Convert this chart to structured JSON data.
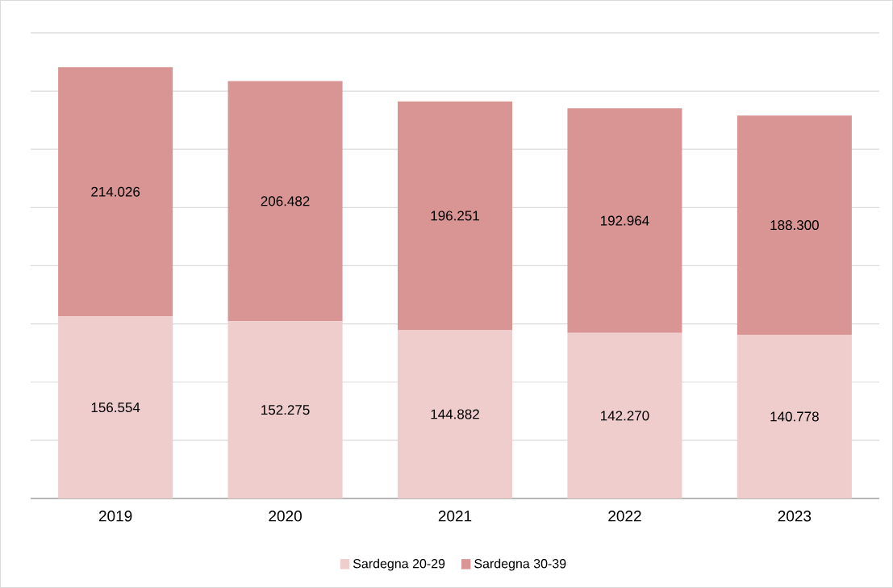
{
  "chart_data": {
    "type": "bar",
    "stacked": true,
    "categories": [
      "2019",
      "2020",
      "2021",
      "2022",
      "2023"
    ],
    "series": [
      {
        "name": "Sardegna 20-29",
        "color": "#eecdcc",
        "values": [
          156554,
          152275,
          144882,
          142270,
          140778
        ],
        "value_labels": [
          "156.554",
          "152.275",
          "144.882",
          "142.270",
          "140.778"
        ]
      },
      {
        "name": "Sardegna 30-39",
        "color": "#d99594",
        "values": [
          214026,
          206482,
          196251,
          192964,
          188300
        ],
        "value_labels": [
          "214.026",
          "206.482",
          "196.251",
          "192.964",
          "188.300"
        ]
      }
    ],
    "ylim": [
      0,
      400000
    ],
    "yticks": [
      {
        "value": 0,
        "label": null
      },
      {
        "value": 50000,
        "label": null
      },
      {
        "value": 100000,
        "label": null
      },
      {
        "value": 150000,
        "label": null
      },
      {
        "value": 200000,
        "label": null
      },
      {
        "value": 250000,
        "label": null
      },
      {
        "value": 300000,
        "label": null
      },
      {
        "value": 350000,
        "label": null
      },
      {
        "value": 400000,
        "label": null
      }
    ],
    "grid": "y",
    "legend": "bottom",
    "tick_labels": "x"
  }
}
